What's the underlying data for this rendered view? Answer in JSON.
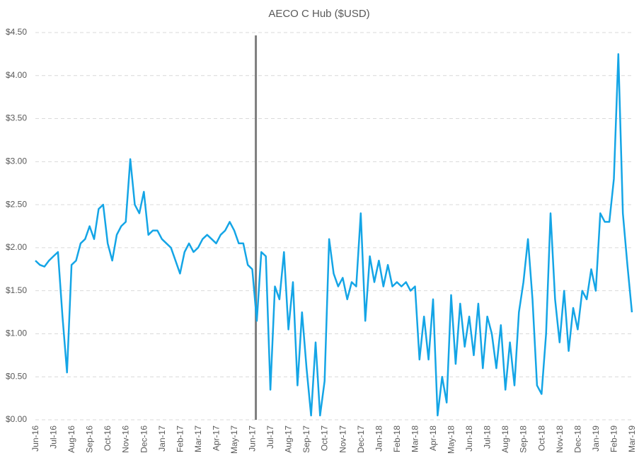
{
  "chart_data": {
    "type": "line",
    "title": "AECO C Hub ($USD)",
    "x": [
      "Jun-16",
      "Jun-16",
      "Jun-16",
      "Jun-16",
      "Jul-16",
      "Jul-16",
      "Jul-16",
      "Jul-16",
      "Aug-16",
      "Aug-16",
      "Aug-16",
      "Aug-16",
      "Sep-16",
      "Sep-16",
      "Sep-16",
      "Sep-16",
      "Oct-16",
      "Oct-16",
      "Oct-16",
      "Oct-16",
      "Nov-16",
      "Nov-16",
      "Nov-16",
      "Nov-16",
      "Dec-16",
      "Dec-16",
      "Dec-16",
      "Dec-16",
      "Jan-17",
      "Jan-17",
      "Jan-17",
      "Jan-17",
      "Feb-17",
      "Feb-17",
      "Feb-17",
      "Feb-17",
      "Mar-17",
      "Mar-17",
      "Mar-17",
      "Mar-17",
      "Apr-17",
      "Apr-17",
      "Apr-17",
      "Apr-17",
      "May-17",
      "May-17",
      "May-17",
      "May-17",
      "Jun-17",
      "Jun-17",
      "Jun-17",
      "Jun-17",
      "Jul-17",
      "Jul-17",
      "Jul-17",
      "Jul-17",
      "Aug-17",
      "Aug-17",
      "Aug-17",
      "Aug-17",
      "Sep-17",
      "Sep-17",
      "Sep-17",
      "Sep-17",
      "Oct-17",
      "Oct-17",
      "Oct-17",
      "Oct-17",
      "Nov-17",
      "Nov-17",
      "Nov-17",
      "Nov-17",
      "Dec-17",
      "Dec-17",
      "Dec-17",
      "Dec-17",
      "Jan-18",
      "Jan-18",
      "Jan-18",
      "Jan-18",
      "Feb-18",
      "Feb-18",
      "Feb-18",
      "Feb-18",
      "Mar-18",
      "Mar-18",
      "Mar-18",
      "Mar-18",
      "Apr-18",
      "Apr-18",
      "Apr-18",
      "Apr-18",
      "May-18",
      "May-18",
      "May-18",
      "May-18",
      "Jun-18",
      "Jun-18",
      "Jun-18",
      "Jun-18",
      "Jul-18",
      "Jul-18",
      "Jul-18",
      "Jul-18",
      "Aug-18",
      "Aug-18",
      "Aug-18",
      "Aug-18",
      "Sep-18",
      "Sep-18",
      "Sep-18",
      "Sep-18",
      "Oct-18",
      "Oct-18",
      "Oct-18",
      "Oct-18",
      "Nov-18",
      "Nov-18",
      "Nov-18",
      "Nov-18",
      "Dec-18",
      "Dec-18",
      "Dec-18",
      "Dec-18",
      "Jan-19",
      "Jan-19",
      "Jan-19",
      "Jan-19",
      "Feb-19",
      "Feb-19",
      "Feb-19",
      "Feb-19",
      "Mar-19"
    ],
    "xticks": [
      "Jun-16",
      "Jul-16",
      "Aug-16",
      "Sep-16",
      "Oct-16",
      "Nov-16",
      "Dec-16",
      "Jan-17",
      "Feb-17",
      "Mar-17",
      "Apr-17",
      "May-17",
      "Jun-17",
      "Jul-17",
      "Aug-17",
      "Sep-17",
      "Oct-17",
      "Nov-17",
      "Dec-17",
      "Jan-18",
      "Feb-18",
      "Mar-18",
      "Apr-18",
      "May-18",
      "Jun-18",
      "Jul-18",
      "Aug-18",
      "Sep-18",
      "Oct-18",
      "Nov-18",
      "Dec-18",
      "Jan-19",
      "Feb-19",
      "Mar-19"
    ],
    "series": [
      {
        "color": "#14a5e6",
        "values": [
          1.85,
          1.8,
          1.78,
          1.85,
          1.9,
          1.95,
          1.2,
          0.55,
          1.8,
          1.85,
          2.05,
          2.1,
          2.25,
          2.1,
          2.45,
          2.5,
          2.05,
          1.85,
          2.15,
          2.25,
          2.3,
          3.03,
          2.5,
          2.4,
          2.65,
          2.15,
          2.2,
          2.2,
          2.1,
          2.05,
          2.0,
          1.85,
          1.7,
          1.95,
          2.05,
          1.95,
          2.0,
          2.1,
          2.15,
          2.1,
          2.05,
          2.15,
          2.2,
          2.3,
          2.2,
          2.05,
          2.05,
          1.8,
          1.75,
          1.15,
          1.95,
          1.9,
          0.35,
          1.55,
          1.4,
          1.95,
          1.05,
          1.6,
          0.4,
          1.25,
          0.6,
          0.05,
          0.9,
          0.05,
          0.45,
          2.1,
          1.7,
          1.55,
          1.65,
          1.4,
          1.6,
          1.55,
          2.4,
          1.15,
          1.9,
          1.6,
          1.85,
          1.55,
          1.8,
          1.55,
          1.6,
          1.55,
          1.6,
          1.5,
          1.55,
          0.7,
          1.2,
          0.7,
          1.4,
          0.05,
          0.5,
          0.2,
          1.45,
          0.65,
          1.35,
          0.85,
          1.2,
          0.75,
          1.35,
          0.6,
          1.2,
          1.0,
          0.6,
          1.1,
          0.35,
          0.9,
          0.4,
          1.25,
          1.6,
          2.1,
          1.4,
          0.4,
          0.3,
          1.0,
          2.4,
          1.4,
          0.9,
          1.5,
          0.8,
          1.3,
          1.05,
          1.5,
          1.4,
          1.75,
          1.5,
          2.4,
          2.3,
          2.3,
          2.8,
          4.25,
          2.4,
          1.8,
          1.25
        ]
      }
    ],
    "ylim": [
      0,
      4.5
    ],
    "yticks": [
      {
        "value": 0,
        "label": "$0.00"
      },
      {
        "value": 0.5,
        "label": "$0.50"
      },
      {
        "value": 1,
        "label": "$1.00"
      },
      {
        "value": 1.5,
        "label": "$1.50"
      },
      {
        "value": 2,
        "label": "$2.00"
      },
      {
        "value": 2.5,
        "label": "$2.50"
      },
      {
        "value": 3,
        "label": "$3.00"
      },
      {
        "value": 3.5,
        "label": "$3.50"
      },
      {
        "value": 4,
        "label": "$4.00"
      },
      {
        "value": 4.5,
        "label": "$4.50"
      }
    ],
    "grid": true
  }
}
